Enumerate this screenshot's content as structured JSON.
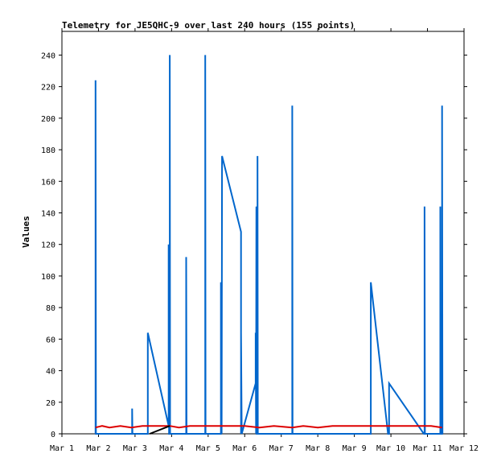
{
  "chart_data": {
    "type": "line",
    "title": "Telemetry for JE5QHC-9 over last 240 hours (155 points)",
    "xlabel": "",
    "ylabel": "Values",
    "ylim": [
      0,
      255
    ],
    "xlim": [
      0,
      11
    ],
    "x_unit": "days since Mar 1",
    "xticks": [
      {
        "v": 0,
        "label": "Mar 1"
      },
      {
        "v": 1,
        "label": "Mar 2"
      },
      {
        "v": 2,
        "label": "Mar 3"
      },
      {
        "v": 3,
        "label": "Mar 4"
      },
      {
        "v": 4,
        "label": "Mar 5"
      },
      {
        "v": 5,
        "label": "Mar 6"
      },
      {
        "v": 6,
        "label": "Mar 7"
      },
      {
        "v": 7,
        "label": "Mar 8"
      },
      {
        "v": 8,
        "label": "Mar 9"
      },
      {
        "v": 9,
        "label": "Mar 10"
      },
      {
        "v": 10,
        "label": "Mar 11"
      },
      {
        "v": 11,
        "label": "Mar 12"
      }
    ],
    "yticks": [
      0,
      20,
      40,
      60,
      80,
      100,
      120,
      140,
      160,
      180,
      200,
      220,
      240
    ],
    "grid": false,
    "series": [
      {
        "color": "#0066cc",
        "points": [
          [
            0.92,
            0
          ],
          [
            0.92,
            224
          ],
          [
            0.93,
            0
          ],
          [
            1.92,
            0
          ],
          [
            1.92,
            16
          ],
          [
            1.93,
            0
          ],
          [
            2.35,
            0
          ],
          [
            2.35,
            64
          ],
          [
            2.92,
            5
          ],
          [
            2.92,
            120
          ],
          [
            2.93,
            0
          ],
          [
            2.95,
            0
          ],
          [
            2.95,
            240
          ],
          [
            2.96,
            0
          ],
          [
            3.4,
            0
          ],
          [
            3.4,
            112
          ],
          [
            3.41,
            0
          ],
          [
            3.92,
            0
          ],
          [
            3.92,
            240
          ],
          [
            3.93,
            0
          ],
          [
            4.35,
            0
          ],
          [
            4.35,
            96
          ],
          [
            4.37,
            0
          ],
          [
            4.38,
            176
          ],
          [
            4.9,
            128
          ],
          [
            4.9,
            0
          ],
          [
            4.9,
            64
          ],
          [
            4.92,
            0
          ],
          [
            5.3,
            32
          ],
          [
            5.3,
            64
          ],
          [
            5.31,
            0
          ],
          [
            5.32,
            144
          ],
          [
            5.33,
            0
          ],
          [
            5.35,
            0
          ],
          [
            5.35,
            176
          ],
          [
            5.36,
            0
          ],
          [
            6.3,
            0
          ],
          [
            6.3,
            208
          ],
          [
            6.31,
            0
          ],
          [
            8.45,
            0
          ],
          [
            8.45,
            96
          ],
          [
            8.92,
            0
          ],
          [
            8.95,
            0
          ],
          [
            8.95,
            32
          ],
          [
            9.9,
            0
          ],
          [
            9.92,
            0
          ],
          [
            9.92,
            144
          ],
          [
            9.93,
            0
          ],
          [
            10.35,
            0
          ],
          [
            10.35,
            144
          ],
          [
            10.36,
            0
          ],
          [
            10.38,
            0
          ],
          [
            10.38,
            72
          ],
          [
            10.39,
            0
          ],
          [
            10.4,
            0
          ],
          [
            10.4,
            208
          ],
          [
            10.41,
            0
          ]
        ]
      },
      {
        "color": "#dd0000",
        "points": [
          [
            0.92,
            4
          ],
          [
            1.1,
            5
          ],
          [
            1.3,
            4
          ],
          [
            1.6,
            5
          ],
          [
            1.9,
            4
          ],
          [
            2.2,
            5
          ],
          [
            2.5,
            5
          ],
          [
            2.95,
            5
          ],
          [
            3.2,
            4
          ],
          [
            3.5,
            5
          ],
          [
            3.9,
            5
          ],
          [
            4.2,
            5
          ],
          [
            4.6,
            5
          ],
          [
            5.0,
            5
          ],
          [
            5.4,
            4
          ],
          [
            5.8,
            5
          ],
          [
            6.3,
            4
          ],
          [
            6.6,
            5
          ],
          [
            7.0,
            4
          ],
          [
            7.4,
            5
          ],
          [
            7.8,
            5
          ],
          [
            8.2,
            5
          ],
          [
            8.6,
            5
          ],
          [
            9.0,
            5
          ],
          [
            9.4,
            5
          ],
          [
            9.8,
            5
          ],
          [
            10.1,
            5
          ],
          [
            10.4,
            4
          ]
        ]
      },
      {
        "color": "#000000",
        "points": [
          [
            2.4,
            0
          ],
          [
            2.95,
            5
          ]
        ]
      }
    ]
  }
}
